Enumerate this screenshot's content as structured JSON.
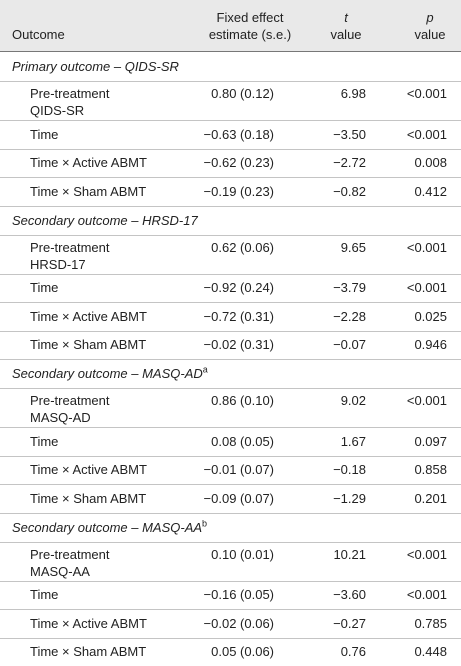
{
  "table": {
    "header": {
      "outcome": "Outcome",
      "estimate": [
        "Fixed effect",
        "estimate (s.e.)"
      ],
      "t": [
        "t",
        "value"
      ],
      "p": [
        "p",
        "value"
      ]
    },
    "sections": [
      {
        "title": "Primary outcome – QIDS-SR",
        "rows": [
          {
            "label": [
              "Pre-treatment",
              "QIDS-SR"
            ],
            "estimate": "0.80 (0.12)",
            "t": "6.98",
            "p": "<0.001"
          },
          {
            "label": "Time",
            "estimate": "−0.63 (0.18)",
            "t": "−3.50",
            "p": "<0.001"
          },
          {
            "label": "Time × Active ABMT",
            "estimate": "−0.62 (0.23)",
            "t": "−2.72",
            "p": "0.008"
          },
          {
            "label": "Time × Sham ABMT",
            "estimate": "−0.19 (0.23)",
            "t": "−0.82",
            "p": "0.412"
          }
        ]
      },
      {
        "title": "Secondary outcome – HRSD-17",
        "rows": [
          {
            "label": [
              "Pre-treatment",
              "HRSD-17"
            ],
            "estimate": "0.62 (0.06)",
            "t": "9.65",
            "p": "<0.001"
          },
          {
            "label": "Time",
            "estimate": "−0.92 (0.24)",
            "t": "−3.79",
            "p": "<0.001"
          },
          {
            "label": "Time × Active ABMT",
            "estimate": "−0.72 (0.31)",
            "t": "−2.28",
            "p": "0.025"
          },
          {
            "label": "Time × Sham ABMT",
            "estimate": "−0.02 (0.31)",
            "t": "−0.07",
            "p": "0.946"
          }
        ]
      },
      {
        "title": "Secondary outcome – MASQ-AD",
        "note": "a",
        "rows": [
          {
            "label": [
              "Pre-treatment",
              "MASQ-AD"
            ],
            "estimate": "0.86 (0.10)",
            "t": "9.02",
            "p": "<0.001"
          },
          {
            "label": "Time",
            "estimate": "0.08 (0.05)",
            "t": "1.67",
            "p": "0.097"
          },
          {
            "label": "Time × Active ABMT",
            "estimate": "−0.01 (0.07)",
            "t": "−0.18",
            "p": "0.858"
          },
          {
            "label": "Time × Sham ABMT",
            "estimate": "−0.09 (0.07)",
            "t": "−1.29",
            "p": "0.201"
          }
        ]
      },
      {
        "title": "Secondary outcome – MASQ-AA",
        "note": "b",
        "rows": [
          {
            "label": [
              "Pre-treatment",
              "MASQ-AA"
            ],
            "estimate": "0.10 (0.01)",
            "t": "10.21",
            "p": "<0.001"
          },
          {
            "label": "Time",
            "estimate": "−0.16 (0.05)",
            "t": "−3.60",
            "p": "<0.001"
          },
          {
            "label": "Time × Active ABMT",
            "estimate": "−0.02 (0.06)",
            "t": "−0.27",
            "p": "0.785"
          },
          {
            "label": "Time × Sham ABMT",
            "estimate": "0.05 (0.06)",
            "t": "0.76",
            "p": "0.448"
          }
        ]
      }
    ]
  }
}
